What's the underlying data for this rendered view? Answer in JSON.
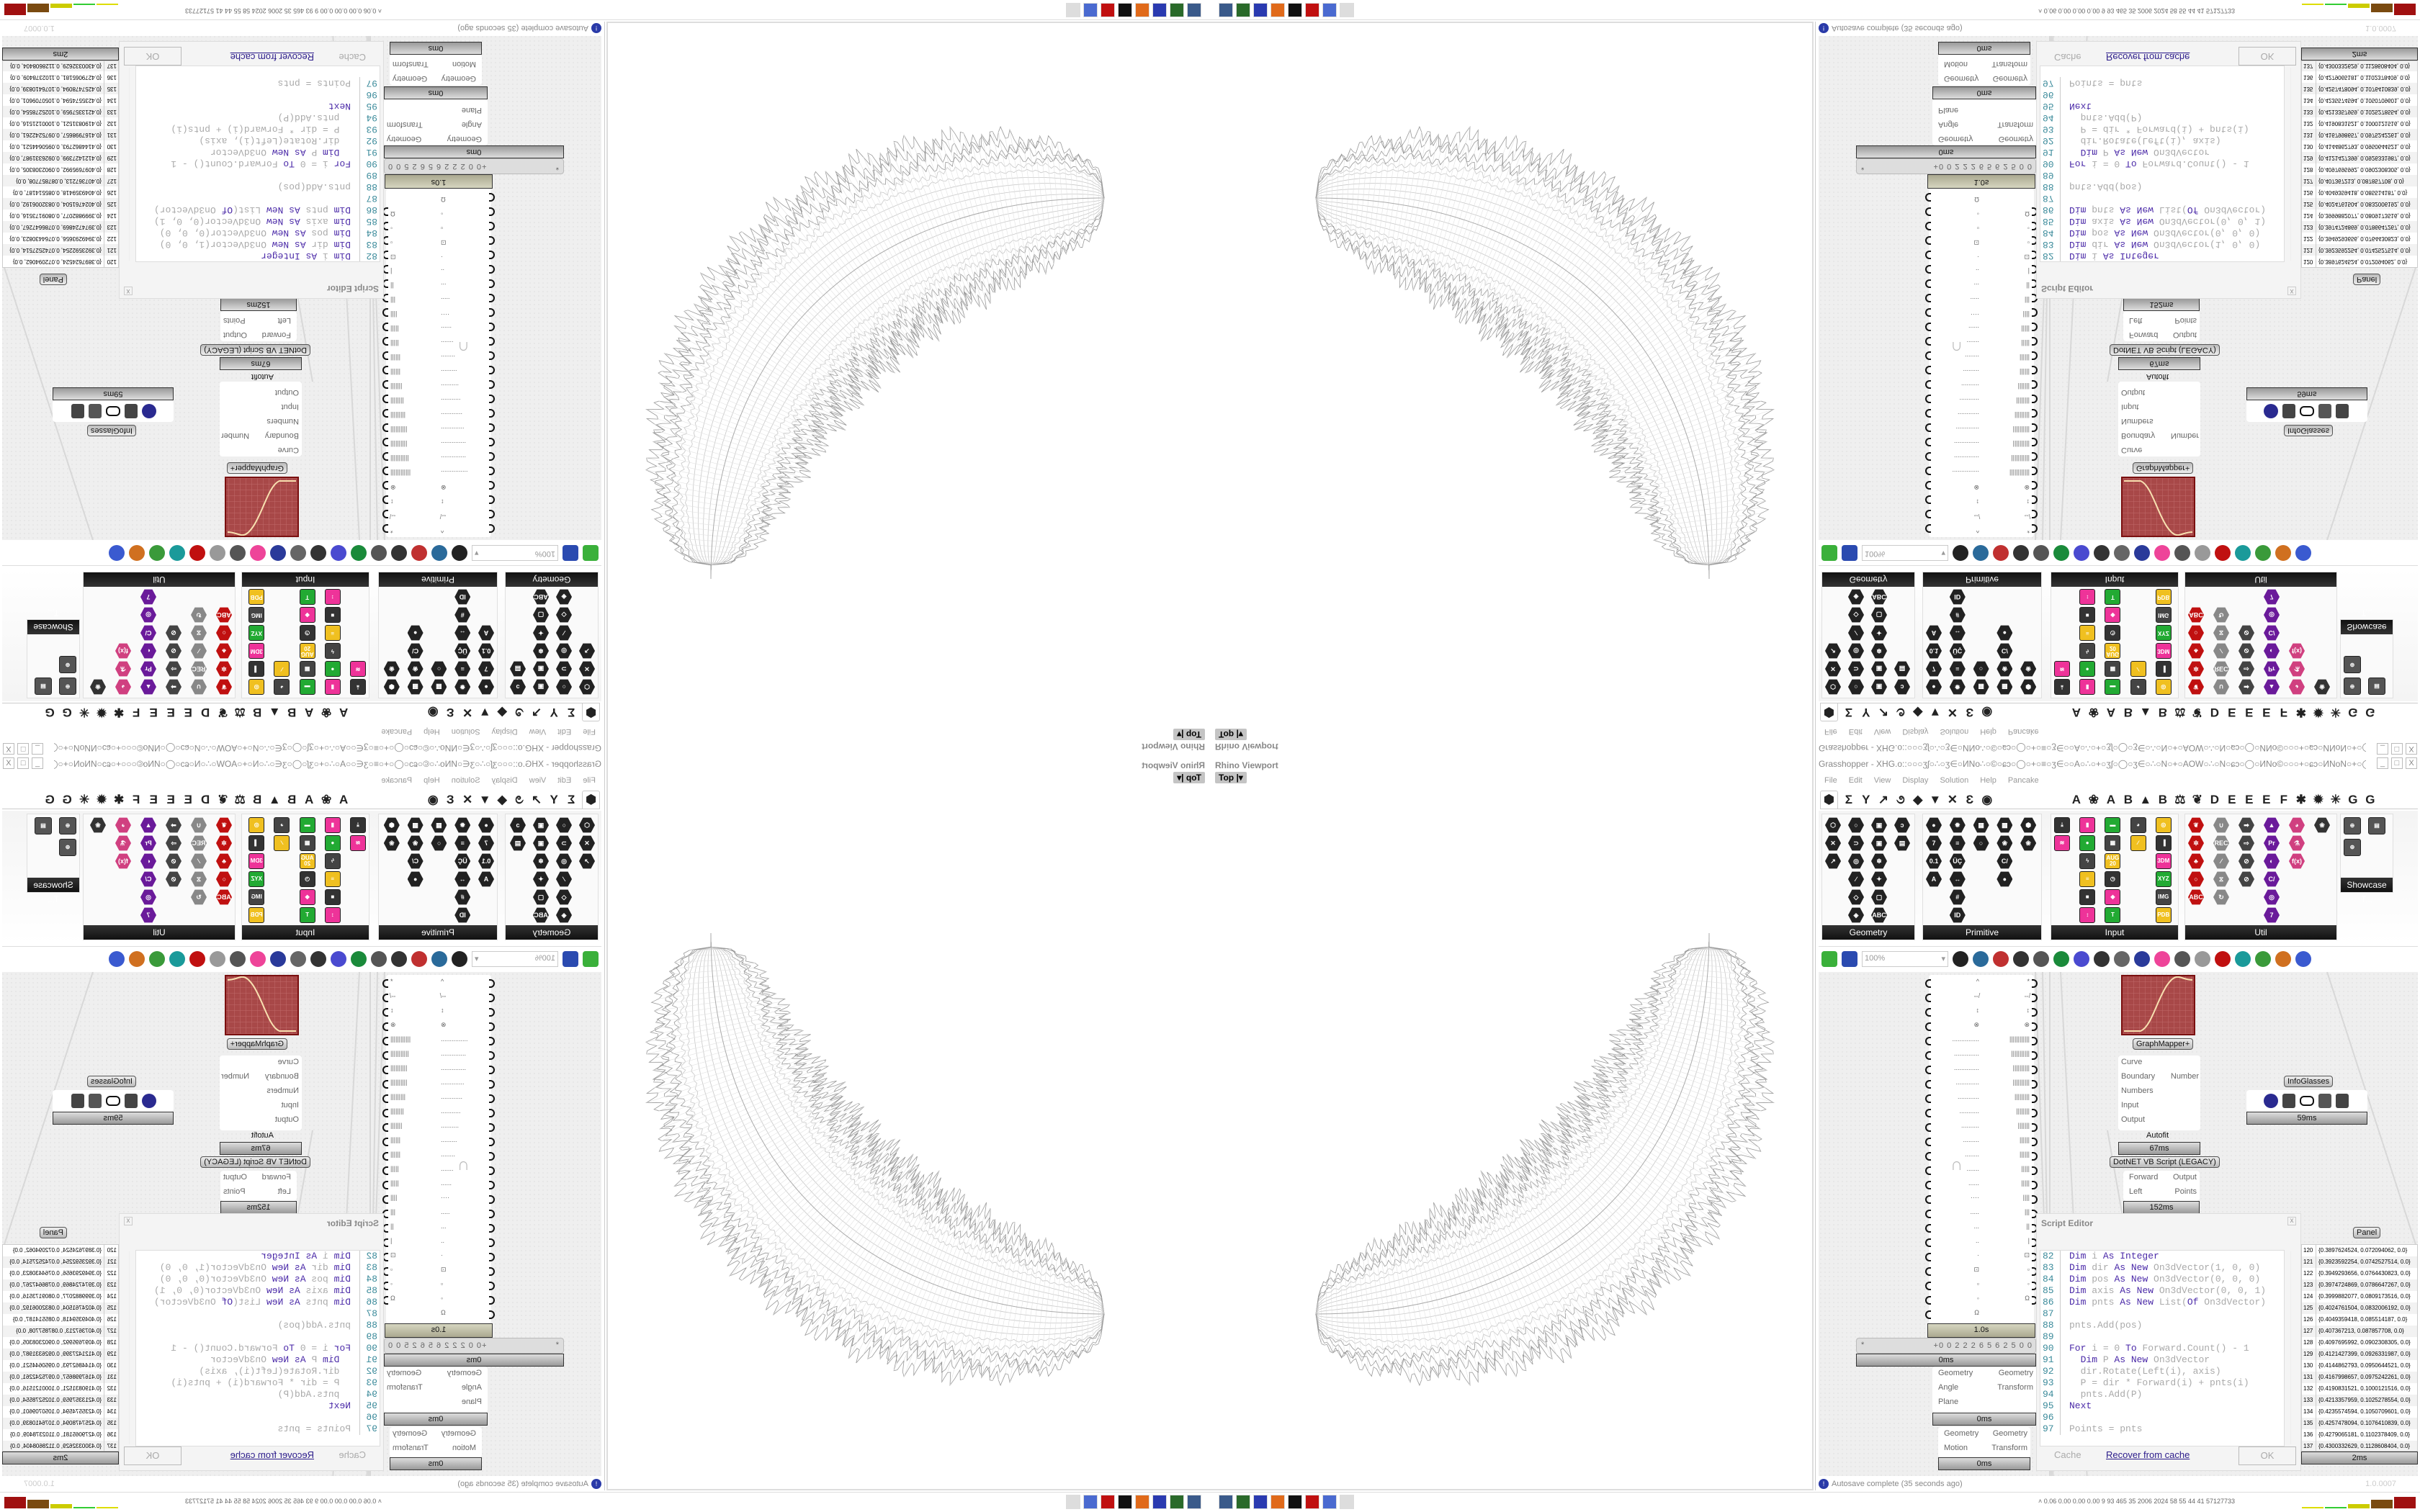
{
  "viewport": {
    "title": "Rhino Viewport",
    "view": "Top"
  },
  "window": {
    "title": "Grasshopper - XHG.o::○○○ʒʃ○∴○ʒ∈○ИNo∴○©○ɕɔ○◯○+○≡○ʒ∈○○A○∴○+○ʒʃ○◯○ʒ∈○∴○N○+○AOW○∴○N○ɕɔ○◯○ИNo©○○○+○ɕɔ○ИNoN○+○◯○ʒʃ○N○○≡...",
    "buttons": [
      "_",
      "□",
      "X"
    ]
  },
  "menu": [
    "File",
    "Edit",
    "View",
    "Display",
    "Solution",
    "Help",
    "Pancake"
  ],
  "tabs": [
    "⬢",
    "Σ",
    "Y",
    "↗",
    "૭",
    "◆",
    "▼",
    "✕",
    "Ɛ",
    "◉",
    "A",
    "❀",
    "A",
    "B",
    "▲",
    "B",
    "⚖",
    "❦",
    "D",
    "E",
    "E",
    "E",
    "F",
    "✱",
    "✹",
    "✳",
    "G",
    "G"
  ],
  "ribbon": {
    "groups": [
      {
        "label": "Geometry",
        "rows": 6,
        "icons": [
          "⬡",
          "✕",
          "↗",
          "",
          "",
          "",
          "○",
          "⊃",
          "◎",
          "∕",
          "◇",
          "◈",
          "▣",
          "▣",
          "❄",
          "✦",
          "▢",
          "ABC",
          "ɔ",
          "▤",
          "",
          "",
          "",
          ""
        ]
      },
      {
        "label": "Primitive",
        "rows": 6,
        "icons": [
          "●",
          "7",
          "0.1",
          "A",
          "",
          "",
          "✹",
          "≡",
          "ÜÇ",
          "↔",
          "#",
          "ID",
          "▦",
          "○",
          "",
          "",
          "",
          "",
          "▩",
          "❀",
          "C/",
          "●",
          "",
          "",
          "⬢",
          "❀",
          "",
          "",
          "",
          ""
        ]
      },
      {
        "label": "Input",
        "rows": 6,
        "icons": [
          "⤓",
          "≋",
          "",
          "",
          "",
          "",
          "▮",
          "●",
          "ϟ",
          "≡",
          "■",
          "↕",
          "▬",
          "▦",
          "AUG 20",
          "◷",
          "◆",
          "T",
          "◕",
          "∕",
          "",
          "",
          "",
          "",
          "◎",
          "▐",
          "3DM",
          "XYZ",
          "IMG",
          "PDB"
        ]
      },
      {
        "label": "Util",
        "rows": 6,
        "icons": [
          "❦",
          "✲",
          "♣",
          "○",
          "ABC",
          "",
          "∪",
          "REC",
          "∕",
          "⧖",
          "↻",
          "",
          "➡",
          "⇨",
          "⊘",
          "⊘",
          "",
          "",
          "▲",
          "Pr",
          "◐",
          "C/",
          "◎",
          "7",
          "◕",
          "⚗",
          "f(x)",
          "",
          "",
          "",
          "❀",
          "",
          "",
          "",
          "",
          ""
        ]
      }
    ],
    "showcase": {
      "label": "Showcase T...",
      "icons": [
        "⊕",
        "⊕",
        "▤"
      ]
    }
  },
  "toolbar": {
    "zoom": "100%",
    "icons": [
      "new-file",
      "save",
      "zoom-extents",
      "eye-preview",
      "sketch-pen",
      "bake",
      "objects",
      "axes",
      "colors-ring",
      "gha",
      "image",
      "search",
      "package",
      "stone",
      "dice",
      "gem",
      "ribbon-teal",
      "ribbon-green",
      "sphere-half",
      "sphere-blue"
    ]
  },
  "canvas": {
    "multi_component": {
      "inputs": [
        "^",
        "⇎",
        "↕",
        "⊗",
        "...............",
        "..............",
        "..............",
        ".............",
        "............",
        "...........",
        "..........",
        ".........",
        "........",
        ".......",
        "......",
        "····",
        ".....",
        "...",
        "..",
        "·",
        "⊡",
        "▫",
        "◦",
        "Ω"
      ],
      "outputs": [
        "*",
        "⇎",
        "↕",
        "⊗",
        "||||||||||||",
        "|||||||||||",
        "||||||||||",
        "||||||||||",
        "|||||||||",
        "||||||||",
        "|||||||",
        "||||||",
        "||||||",
        "|||||",
        "|||||",
        "||||",
        "|||",
        "||",
        "|",
        "⊡",
        "▫",
        "◦",
        "Ω"
      ],
      "time": "1.0s"
    },
    "slider": {
      "value": "+0 0 2 2 2 6 5 6 2 5 0 0",
      "marker": "*",
      "time": "0ms"
    },
    "rotate": {
      "inputs": [
        "Geometry",
        "Angle",
        "Plane"
      ],
      "outputs": [
        "Geometry",
        "Transform"
      ],
      "time": "0ms"
    },
    "move": {
      "inputs": [
        "Geometry",
        "Motion"
      ],
      "outputs": [
        "Geometry",
        "Transform"
      ],
      "time": "0ms"
    },
    "graph_mapper": {
      "label": "GraphMapper+",
      "inputs": [
        "Curve",
        "Boundary",
        "Numbers",
        "Input",
        "Output"
      ],
      "output": "Number",
      "footer": "Autofit",
      "time": "67ms",
      "color": "#a84848"
    },
    "vb_script": {
      "label": "DotNET VB Script (LEGACY)",
      "inputs": [
        "Forward",
        "Left"
      ],
      "outputs": [
        "Output",
        "Points"
      ],
      "time": "152ms"
    },
    "info_glasses": {
      "label": "InfoGlasses",
      "time": "59ms"
    },
    "panel": {
      "label": "Panel",
      "time": "2ms",
      "rows": [
        {
          "i": "120",
          "v": "{0.3897624524, 0.072094062, 0.0}"
        },
        {
          "i": "121",
          "v": "{0.3923592254, 0.0742527514, 0.0}"
        },
        {
          "i": "122",
          "v": "{0.3949293656, 0.0764430823, 0.0}"
        },
        {
          "i": "123",
          "v": "{0.3974724869, 0.0786647267, 0.0}"
        },
        {
          "i": "124",
          "v": "{0.3999882077, 0.0809173516, 0.0}"
        },
        {
          "i": "125",
          "v": "{0.4024761504, 0.0832006192, 0.0}"
        },
        {
          "i": "126",
          "v": "{0.4049359418, 0.085514187, 0.0}"
        },
        {
          "i": "127",
          "v": "{0.407367213, 0.087857708, 0.0}"
        },
        {
          "i": "128",
          "v": "{0.4097695992, 0.0902308305, 0.0}"
        },
        {
          "i": "129",
          "v": "{0.4121427399, 0.0926331987, 0.0}"
        },
        {
          "i": "130",
          "v": "{0.4144862793, 0.0950644521, 0.0}"
        },
        {
          "i": "131",
          "v": "{0.4167998657, 0.0975242261, 0.0}"
        },
        {
          "i": "132",
          "v": "{0.4190831521, 0.1000121516, 0.0}"
        },
        {
          "i": "133",
          "v": "{0.4213357959, 0.1025278554, 0.0}"
        },
        {
          "i": "134",
          "v": "{0.4235574594, 0.1050709601, 0.0}"
        },
        {
          "i": "135",
          "v": "{0.4257478094, 0.1076410839, 0.0}"
        },
        {
          "i": "136",
          "v": "{0.4279065181, 0.1102378409, 0.0}"
        },
        {
          "i": "137",
          "v": "{0.4300332629, 0.1128608404, 0.0}"
        }
      ]
    }
  },
  "editor": {
    "title": "Script Editor",
    "lines": [
      {
        "n": "82",
        "parts": [
          [
            "kw",
            "Dim "
          ],
          [
            "tx",
            "i "
          ],
          [
            "kw",
            "As Integer"
          ]
        ]
      },
      {
        "n": "83",
        "parts": [
          [
            "kw",
            "Dim "
          ],
          [
            "tx",
            "dir "
          ],
          [
            "kw",
            "As New "
          ],
          [
            "tx",
            "On3dVector(1, 0, 0)"
          ]
        ]
      },
      {
        "n": "84",
        "parts": [
          [
            "kw",
            "Dim "
          ],
          [
            "tx",
            "pos "
          ],
          [
            "kw",
            "As New "
          ],
          [
            "tx",
            "On3dVector(0, 0, 0)"
          ]
        ]
      },
      {
        "n": "85",
        "parts": [
          [
            "kw",
            "Dim "
          ],
          [
            "tx",
            "axis "
          ],
          [
            "kw",
            "As New "
          ],
          [
            "tx",
            "On3dVector(0, 0, 1)"
          ]
        ]
      },
      {
        "n": "86",
        "parts": [
          [
            "kw",
            "Dim "
          ],
          [
            "tx",
            "pnts "
          ],
          [
            "kw",
            "As New "
          ],
          [
            "tx",
            "List("
          ],
          [
            "kw",
            "Of "
          ],
          [
            "tx",
            "On3dVector)"
          ]
        ]
      },
      {
        "n": "87",
        "parts": []
      },
      {
        "n": "88",
        "parts": [
          [
            "tx",
            "pnts.Add(pos)"
          ]
        ]
      },
      {
        "n": "89",
        "parts": []
      },
      {
        "n": "90",
        "parts": [
          [
            "kw",
            "For "
          ],
          [
            "tx",
            "i = 0 "
          ],
          [
            "kw",
            "To "
          ],
          [
            "tx",
            "Forward.Count() - 1"
          ]
        ]
      },
      {
        "n": "91",
        "parts": [
          [
            "kw",
            "  Dim "
          ],
          [
            "tx",
            "P "
          ],
          [
            "kw",
            "As New "
          ],
          [
            "tx",
            "On3dVector"
          ]
        ]
      },
      {
        "n": "92",
        "parts": [
          [
            "tx",
            "  dir.Rotate(Left(i), axis)"
          ]
        ]
      },
      {
        "n": "93",
        "parts": [
          [
            "tx",
            "  P = dir * Forward(i) + pnts(i)"
          ]
        ]
      },
      {
        "n": "94",
        "parts": [
          [
            "tx",
            "  pnts.Add(P)"
          ]
        ]
      },
      {
        "n": "95",
        "parts": [
          [
            "kw",
            "Next"
          ]
        ]
      },
      {
        "n": "96",
        "parts": []
      },
      {
        "n": "97",
        "parts": [
          [
            "tx",
            "Points = pnts"
          ]
        ]
      }
    ],
    "cache": "Cache",
    "recover": "Recover from cache",
    "ok": "OK"
  },
  "status": {
    "text": "Autosave complete (35 seconds ago)",
    "version": "1.0.0007"
  },
  "taskbar": {
    "icons": [
      "remote-desktop",
      "device-manager",
      "floppy-64",
      "firefox",
      "inkscape",
      "game-red",
      "notepad",
      "ghost-app"
    ],
    "stats": "˄  0.06 0.00 0.00 0.00   9    93   465   35  2006 2024  58   55   44   41  57127733"
  }
}
